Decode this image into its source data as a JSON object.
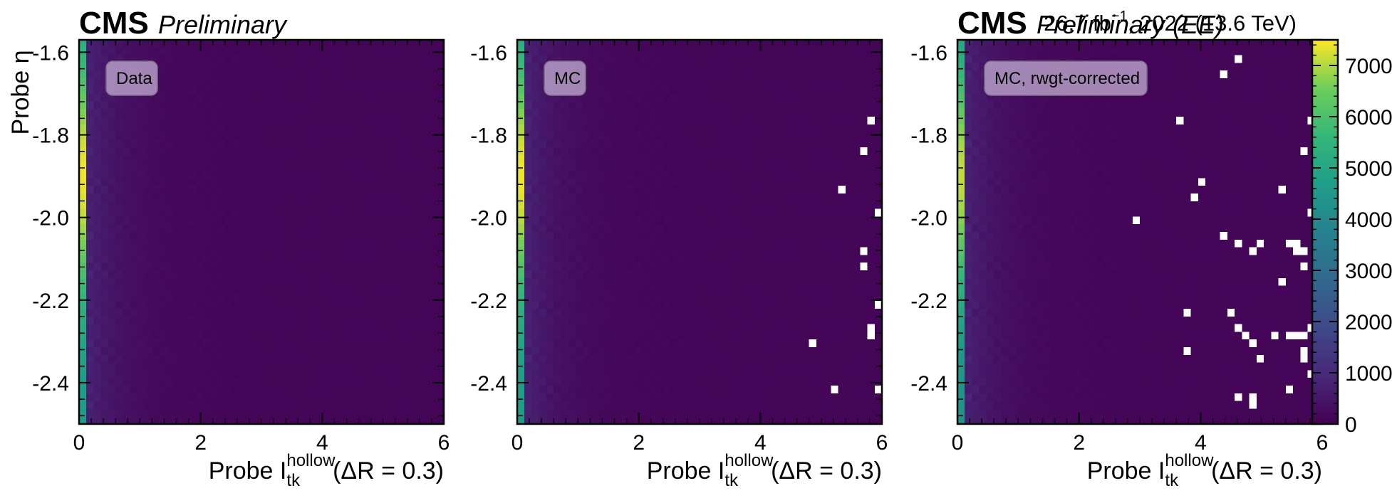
{
  "header": {
    "cms": "CMS",
    "preliminary": "Preliminary",
    "lumi_text": "26.7 fb$^{-1}$, 2022 (13.6 TeV)",
    "lumi_main": "26.7 fb",
    "lumi_sup": "−1",
    "lumi_rest": ", 2022 (13.6 TeV)",
    "era_tag": "(EE)",
    "overlap_note": "header strings overlap in the original right panel"
  },
  "axes": {
    "xlabel_prefix": "Probe I",
    "xlabel_sup": "hollow",
    "xlabel_sub": "tk",
    "xlabel_suffix": "(ΔR = 0.3)",
    "ylabel": "Probe η"
  },
  "colorbar": {
    "colormap": "viridis",
    "min": 0,
    "max": 7500,
    "ticks": [
      "0",
      "1000",
      "2000",
      "3000",
      "4000",
      "5000",
      "6000",
      "7000"
    ],
    "tick_values": [
      0,
      1000,
      2000,
      3000,
      4000,
      5000,
      6000,
      7000
    ]
  },
  "colors": {
    "box_fill": "#b59cc5",
    "box_edge": "#7d6f88",
    "empty_bin": "#ffffff"
  },
  "chart_data": [
    {
      "type": "heatmap",
      "panel": "Data",
      "label": "Data",
      "xlim": [
        0,
        6
      ],
      "ylim": [
        -2.5,
        -1.57
      ],
      "x_bins": 50,
      "y_bins": 50,
      "xticks": [
        "0",
        "2",
        "4",
        "6"
      ],
      "yticks": [
        "-1.6",
        "-1.8",
        "-2.0",
        "-2.2",
        "-2.4"
      ],
      "first_column_counts": "≈5000–7500 (peak near η = -1.9)",
      "tail_counts": "≈0–800",
      "empty_bins": []
    },
    {
      "type": "heatmap",
      "panel": "MC",
      "label": "MC",
      "xlim": [
        0,
        6
      ],
      "ylim": [
        -2.5,
        -1.57
      ],
      "x_bins": 50,
      "y_bins": 50,
      "xticks": [
        "0",
        "2",
        "4",
        "6"
      ],
      "yticks": [
        "-1.6",
        "-1.8",
        "-2.0",
        "-2.2",
        "-2.4"
      ],
      "first_column_counts": "≈5000–7000",
      "tail_counts": "≈0–800",
      "empty_bins": [
        [
          5.8,
          -1.77
        ],
        [
          5.68,
          -1.84
        ],
        [
          5.32,
          -1.93
        ],
        [
          5.92,
          -1.98
        ],
        [
          5.64,
          -2.09
        ],
        [
          5.64,
          -2.12
        ],
        [
          5.92,
          -2.21
        ],
        [
          5.76,
          -2.26
        ],
        [
          5.76,
          -2.28
        ],
        [
          4.84,
          -2.3
        ],
        [
          5.16,
          -2.42
        ],
        [
          5.92,
          -2.42
        ]
      ]
    },
    {
      "type": "heatmap",
      "panel": "MC, rwgt-corrected",
      "label": "MC, rwgt-corrected",
      "xlim": [
        0,
        6
      ],
      "ylim": [
        -2.5,
        -1.57
      ],
      "x_bins": 50,
      "y_bins": 50,
      "xticks": [
        "0",
        "2",
        "4",
        "6"
      ],
      "yticks": [
        "-1.6",
        "-1.8",
        "-2.0",
        "-2.2",
        "-2.4"
      ],
      "first_column_counts": "≈4500–7000",
      "tail_counts": "≈0–800",
      "empty_bins": [
        [
          4.6,
          -1.61
        ],
        [
          4.32,
          -1.65
        ],
        [
          3.64,
          -1.77
        ],
        [
          5.8,
          -1.77
        ],
        [
          5.68,
          -1.84
        ],
        [
          4.0,
          -1.91
        ],
        [
          3.88,
          -1.95
        ],
        [
          5.32,
          -1.93
        ],
        [
          5.8,
          -1.98
        ],
        [
          5.92,
          -1.98
        ],
        [
          2.92,
          -2.0
        ],
        [
          4.32,
          -2.04
        ],
        [
          4.6,
          -2.07
        ],
        [
          4.96,
          -2.07
        ],
        [
          5.44,
          -2.07
        ],
        [
          5.56,
          -2.07
        ],
        [
          4.84,
          -2.09
        ],
        [
          5.56,
          -2.09
        ],
        [
          5.68,
          -2.09
        ],
        [
          5.68,
          -2.12
        ],
        [
          5.32,
          -2.16
        ],
        [
          3.76,
          -2.23
        ],
        [
          4.48,
          -2.23
        ],
        [
          5.8,
          -2.26
        ],
        [
          4.6,
          -2.26
        ],
        [
          4.72,
          -2.28
        ],
        [
          5.2,
          -2.28
        ],
        [
          5.44,
          -2.28
        ],
        [
          5.56,
          -2.28
        ],
        [
          5.68,
          -2.28
        ],
        [
          5.96,
          -2.3
        ],
        [
          3.76,
          -2.33
        ],
        [
          4.84,
          -2.3
        ],
        [
          5.68,
          -2.33
        ],
        [
          5.68,
          -2.35
        ],
        [
          4.96,
          -2.35
        ],
        [
          5.8,
          -2.37
        ],
        [
          5.92,
          -2.42
        ],
        [
          5.44,
          -2.42
        ],
        [
          4.6,
          -2.44
        ],
        [
          4.84,
          -2.44
        ],
        [
          4.84,
          -2.46
        ]
      ]
    }
  ]
}
